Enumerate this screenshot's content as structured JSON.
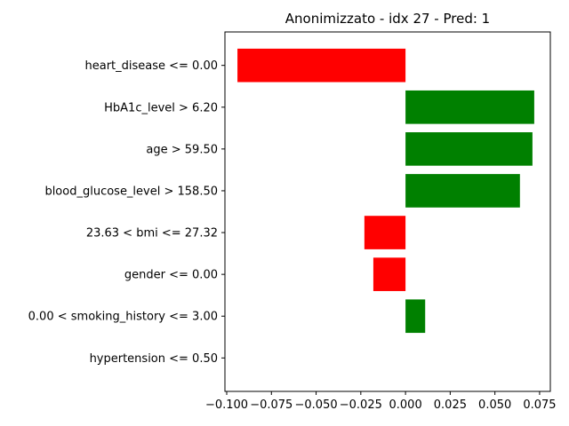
{
  "chart_data": {
    "type": "bar",
    "orientation": "horizontal",
    "title": "Anonimizzato - idx 27 - Pred: 1",
    "xlabel": "",
    "ylabel": "",
    "categories": [
      "heart_disease <= 0.00",
      "HbA1c_level > 6.20",
      "age > 59.50",
      "blood_glucose_level > 158.50",
      "23.63 < bmi <= 27.32",
      "gender <= 0.00",
      "0.00 < smoking_history <= 3.00",
      "hypertension <= 0.50"
    ],
    "values": [
      -0.094,
      0.072,
      0.071,
      0.064,
      -0.023,
      -0.018,
      0.011,
      0.0
    ],
    "xlim": [
      -0.101,
      0.081
    ],
    "xticks": [
      -0.1,
      -0.075,
      -0.05,
      -0.025,
      0.0,
      0.025,
      0.05,
      0.075
    ],
    "xtick_labels": [
      "−0.100",
      "−0.075",
      "−0.050",
      "−0.025",
      "0.000",
      "0.025",
      "0.050",
      "0.075"
    ],
    "positive_color": "#008000",
    "negative_color": "#ff0000",
    "grid": false,
    "legend": "none"
  }
}
